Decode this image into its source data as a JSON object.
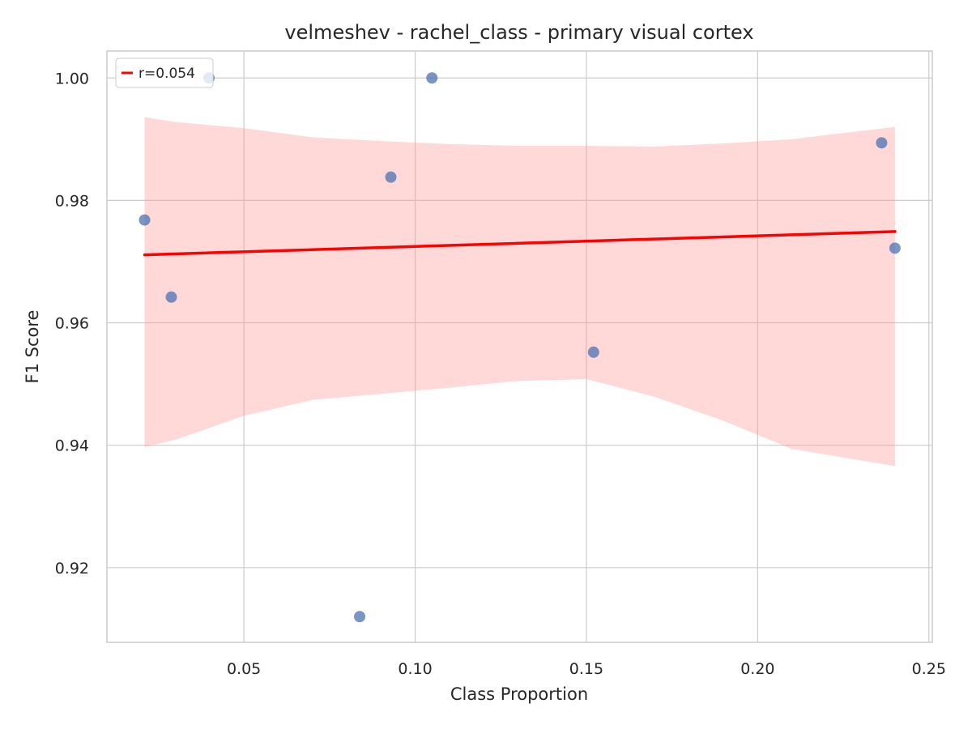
{
  "chart_data": {
    "type": "scatter",
    "title": "velmeshev - rachel_class - primary visual cortex",
    "xlabel": "Class Proportion",
    "ylabel": "F1 Score",
    "xlim": [
      0.01,
      0.251
    ],
    "ylim": [
      0.9078,
      1.0044
    ],
    "xticks": [
      0.05,
      0.1,
      0.15,
      0.2,
      0.25
    ],
    "xtick_labels": [
      "0.05",
      "0.10",
      "0.15",
      "0.20",
      "0.25"
    ],
    "yticks": [
      0.92,
      0.94,
      0.96,
      0.98,
      1.0
    ],
    "ytick_labels": [
      "0.92",
      "0.94",
      "0.96",
      "0.98",
      "1.00"
    ],
    "grid": true,
    "legend": {
      "position": "top-left",
      "entries": [
        {
          "label": "r=0.054",
          "color": "#ff0000"
        }
      ]
    },
    "points": {
      "color": "#4c72b0",
      "x": [
        0.021,
        0.0288,
        0.0398,
        0.0838,
        0.0929,
        0.1049,
        0.1521,
        0.2362,
        0.2401
      ],
      "y": [
        0.9768,
        0.9642,
        1.0,
        0.912,
        0.9838,
        1.0,
        0.9552,
        0.9894,
        0.9722
      ]
    },
    "regression_line": {
      "color": "#ff0000",
      "x": [
        0.021,
        0.2401
      ],
      "y": [
        0.9711,
        0.9749
      ]
    },
    "confidence_band": {
      "color": "#ff9999",
      "x": [
        0.021,
        0.03,
        0.05,
        0.07,
        0.09,
        0.11,
        0.13,
        0.15,
        0.17,
        0.19,
        0.21,
        0.2401
      ],
      "upper": [
        0.9936,
        0.9928,
        0.9918,
        0.9903,
        0.9897,
        0.9892,
        0.9889,
        0.9889,
        0.9888,
        0.9893,
        0.99,
        0.992
      ],
      "lower": [
        0.9397,
        0.9409,
        0.9448,
        0.9474,
        0.9484,
        0.9494,
        0.9505,
        0.9508,
        0.9479,
        0.944,
        0.9394,
        0.9366
      ]
    }
  }
}
